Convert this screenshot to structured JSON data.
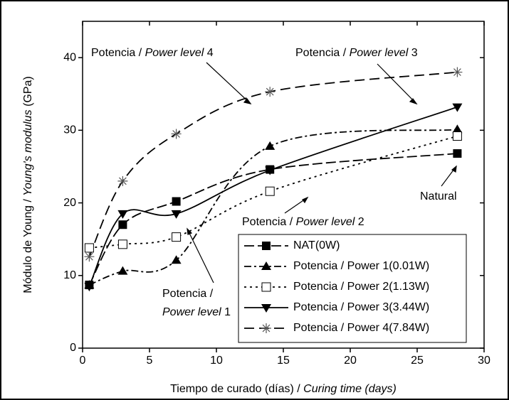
{
  "chart_data": {
    "type": "scatter",
    "x_label": [
      {
        "text": "Tiempo de curado (días) / ",
        "italic": false
      },
      {
        "text": "Curing time (days)",
        "italic": true
      }
    ],
    "y_label": [
      {
        "text": "Módulo de Young / ",
        "italic": false
      },
      {
        "text": "Young's modulus",
        "italic": true
      },
      {
        "text": " (GPa)",
        "italic": false
      }
    ],
    "x": [
      0.5,
      3,
      7,
      14,
      28
    ],
    "xlim": [
      0,
      30
    ],
    "xticks": [
      0,
      5,
      10,
      15,
      20,
      25,
      30
    ],
    "ylim": [
      0,
      45
    ],
    "yticks": [
      0,
      10,
      20,
      30,
      40
    ],
    "series": [
      {
        "name": "NAT(0W)",
        "color": "#000000",
        "marker": "square",
        "values": [
          8.7,
          17,
          20.2,
          24.6,
          26.8
        ]
      },
      {
        "name": "Potencia / Power  1(0.01W)",
        "color": "#000000",
        "marker": "triangle-up",
        "values": [
          8.7,
          10.6,
          12.1,
          27.8,
          30.1
        ]
      },
      {
        "name": "Potencia / Power  2(1.13W)",
        "color": "#000000",
        "marker": "open-square",
        "values": [
          13.8,
          14.3,
          15.3,
          21.6,
          29.2
        ]
      },
      {
        "name": "Potencia / Power  3(3.44W)",
        "color": "#000000",
        "marker": "triangle-down",
        "values": [
          8.5,
          18.5,
          18.5,
          24.5,
          33.2
        ]
      },
      {
        "name": "Potencia / Power  4(7.84W)",
        "color": "#000000",
        "marker": "star",
        "values": [
          12.6,
          23,
          29.5,
          35.3,
          38
        ]
      }
    ],
    "annotations": [
      [
        {
          "text": "Potencia / ",
          "italic": false
        },
        {
          "text": "Power level",
          "italic": true
        },
        {
          "text": " 4",
          "italic": false
        }
      ],
      [
        {
          "text": "Potencia / ",
          "italic": false
        },
        {
          "text": "Power level",
          "italic": true
        },
        {
          "text": " 3",
          "italic": false
        }
      ],
      [
        {
          "text": "Potencia / ",
          "italic": false
        },
        {
          "text": "Power level",
          "italic": true
        },
        {
          "text": " 2",
          "italic": false
        }
      ],
      [
        {
          "text": "Potencia /",
          "italic": false
        },
        {
          "text": "Power level",
          "italic": true
        },
        {
          "text": " 1",
          "italic": false
        }
      ],
      [
        {
          "text": "Natural",
          "italic": false
        }
      ]
    ]
  }
}
